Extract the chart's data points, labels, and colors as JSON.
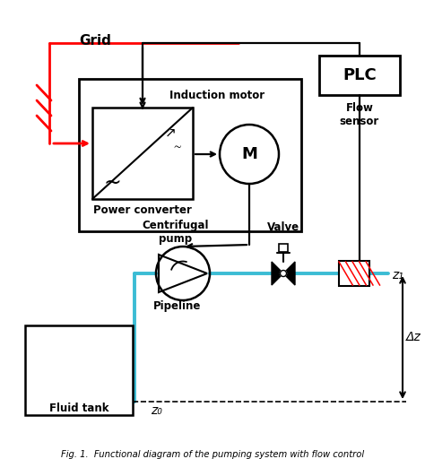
{
  "caption": "Fig. 1.  Functional diagram of the pumping system with flow control",
  "background_color": "#ffffff",
  "line_color": "#000000",
  "red_color": "#ff0000",
  "blue_color": "#3bbcd4",
  "grid_label": "Grid",
  "plc_label": "PLC",
  "motor_label": "M",
  "induction_label": "Induction motor",
  "converter_label": "Power converter",
  "pump_label": "Centrifugal\npump",
  "valve_label": "Valve",
  "flow_label": "Flow\nsensor",
  "pipeline_label": "Pipeline",
  "tank_label": "Fluid tank",
  "z0_label": "z₀",
  "z1_label": "z₁",
  "dz_label": "Δz",
  "fig_w": 4.74,
  "fig_h": 5.12,
  "dpi": 100
}
